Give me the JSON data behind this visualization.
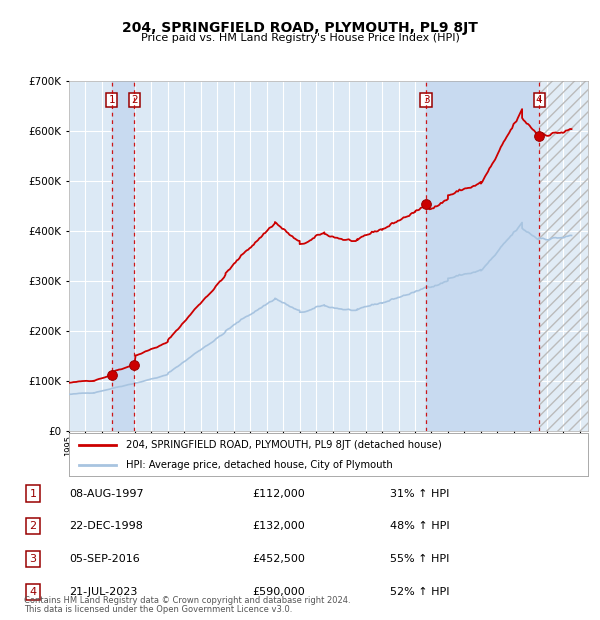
{
  "title1": "204, SPRINGFIELD ROAD, PLYMOUTH, PL9 8JT",
  "title2": "Price paid vs. HM Land Registry's House Price Index (HPI)",
  "legend_line1": "204, SPRINGFIELD ROAD, PLYMOUTH, PL9 8JT (detached house)",
  "legend_line2": "HPI: Average price, detached house, City of Plymouth",
  "footer1": "Contains HM Land Registry data © Crown copyright and database right 2024.",
  "footer2": "This data is licensed under the Open Government Licence v3.0.",
  "xmin": 1995.0,
  "xmax": 2026.5,
  "ymin": 0,
  "ymax": 700000,
  "sale_dates": [
    1997.6,
    1998.97,
    2016.67,
    2023.54
  ],
  "sale_prices": [
    112000,
    132000,
    452500,
    590000
  ],
  "sale_labels": [
    "1",
    "2",
    "3",
    "4"
  ],
  "table_rows": [
    [
      "1",
      "08-AUG-1997",
      "£112,000",
      "31% ↑ HPI"
    ],
    [
      "2",
      "22-DEC-1998",
      "£132,000",
      "48% ↑ HPI"
    ],
    [
      "3",
      "05-SEP-2016",
      "£452,500",
      "55% ↑ HPI"
    ],
    [
      "4",
      "21-JUL-2023",
      "£590,000",
      "52% ↑ HPI"
    ]
  ],
  "bg_color": "#dce9f5",
  "grid_color": "#ffffff",
  "hpi_color": "#a8c4e0",
  "price_color": "#cc0000",
  "dot_color": "#cc0000",
  "vline_color": "#cc0000",
  "shade_color": "#c8daf0",
  "hatch_color": "#c8c8c8"
}
